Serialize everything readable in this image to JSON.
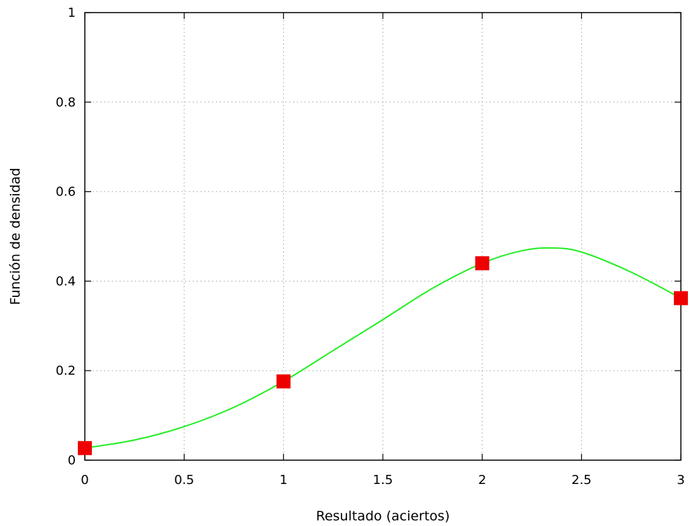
{
  "chart_data": {
    "type": "line",
    "title": "",
    "xlabel": "Resultado (aciertos)",
    "ylabel": "Función de densidad",
    "xlim": [
      0,
      3
    ],
    "ylim": [
      0,
      1
    ],
    "xticks": [
      0,
      0.5,
      1,
      1.5,
      2,
      2.5,
      3
    ],
    "yticks": [
      0,
      0.2,
      0.4,
      0.6,
      0.8,
      1
    ],
    "xtick_labels": [
      "0",
      "0.5",
      "1",
      "1.5",
      "2",
      "2.5",
      "3"
    ],
    "ytick_labels": [
      "0",
      "0.2",
      "0.4",
      "0.6",
      "0.8",
      "1"
    ],
    "grid": true,
    "series": [
      {
        "kind": "points",
        "marker": "square",
        "color": "#ee0000",
        "x": [
          0,
          1,
          2,
          3
        ],
        "y": [
          0.027,
          0.176,
          0.44,
          0.362
        ]
      },
      {
        "kind": "smooth-curve",
        "color": "#22ee22",
        "x": [
          0,
          0.25,
          0.5,
          0.75,
          1,
          1.25,
          1.5,
          1.75,
          2,
          2.2,
          2.35,
          2.5,
          2.75,
          3
        ],
        "y": [
          0.027,
          0.045,
          0.075,
          0.118,
          0.176,
          0.245,
          0.314,
          0.384,
          0.44,
          0.468,
          0.474,
          0.465,
          0.42,
          0.362
        ]
      }
    ]
  }
}
